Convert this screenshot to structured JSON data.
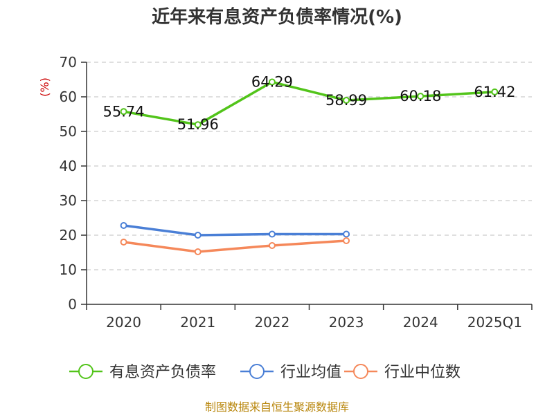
{
  "chart_data": {
    "type": "line",
    "title": "近年来有息资产负债率情况(%)",
    "y_unit_label": "(%)",
    "categories": [
      "2020",
      "2021",
      "2022",
      "2023",
      "2024",
      "2025Q1"
    ],
    "ylim": [
      0,
      70
    ],
    "y_ticks": [
      "0",
      "10",
      "20",
      "30",
      "40",
      "50",
      "60",
      "70"
    ],
    "grid": true,
    "legend_position": "bottom",
    "series": [
      {
        "name": "有息资产负债率",
        "color": "#52c41a",
        "values": [
          55.74,
          51.96,
          64.29,
          58.99,
          60.18,
          61.42
        ],
        "labels": [
          "55.74",
          "51.96",
          "64.29",
          "58.99",
          "60.18",
          "61.42"
        ]
      },
      {
        "name": "行业均值",
        "color": "#4a7fd6",
        "values": [
          22.8,
          20.0,
          20.3,
          20.3,
          null,
          null
        ]
      },
      {
        "name": "行业中位数",
        "color": "#f5885a",
        "values": [
          18.0,
          15.2,
          17.0,
          18.4,
          null,
          null
        ]
      }
    ],
    "source": "制图数据来自恒生聚源数据库"
  }
}
